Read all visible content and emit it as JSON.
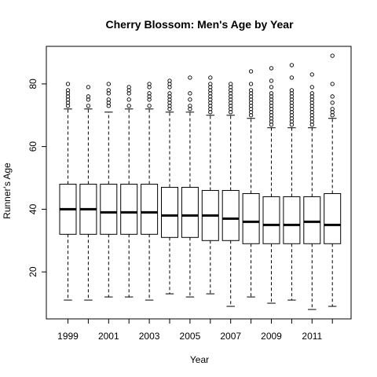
{
  "chart_data": {
    "type": "boxplot",
    "title": "Cherry Blossom: Men's Age by Year",
    "xlabel": "Year",
    "ylabel": "Runner's Age",
    "ylim": [
      5,
      92
    ],
    "yticks": [
      20,
      40,
      60,
      80
    ],
    "grid": false,
    "categories": [
      "1999",
      "2000",
      "2001",
      "2002",
      "2003",
      "2004",
      "2005",
      "2006",
      "2007",
      "2008",
      "2009",
      "2010",
      "2011",
      "2012"
    ],
    "xtick_labels": [
      "1999",
      "2001",
      "2003",
      "2005",
      "2007",
      "2009",
      "2011"
    ],
    "series": [
      {
        "category": "1999",
        "min": 11,
        "q1": 32,
        "median": 40,
        "q3": 48,
        "max": 72,
        "outliers": [
          73,
          74,
          75,
          76,
          77,
          78,
          80
        ]
      },
      {
        "category": "2000",
        "min": 11,
        "q1": 32,
        "median": 40,
        "q3": 48,
        "max": 72,
        "outliers": [
          73,
          75,
          76,
          79
        ]
      },
      {
        "category": "2001",
        "min": 12,
        "q1": 32,
        "median": 39,
        "q3": 48,
        "max": 71,
        "outliers": [
          73,
          74,
          75,
          77,
          78,
          80
        ]
      },
      {
        "category": "2002",
        "min": 12,
        "q1": 32,
        "median": 39,
        "q3": 48,
        "max": 72,
        "outliers": [
          73,
          75,
          77,
          78,
          79
        ]
      },
      {
        "category": "2003",
        "min": 11,
        "q1": 32,
        "median": 39,
        "q3": 48,
        "max": 72,
        "outliers": [
          73,
          75,
          76,
          77,
          79,
          80
        ]
      },
      {
        "category": "2004",
        "min": 13,
        "q1": 31,
        "median": 38,
        "q3": 47,
        "max": 71,
        "outliers": [
          72,
          73,
          74,
          75,
          76,
          77,
          79,
          80,
          81
        ]
      },
      {
        "category": "2005",
        "min": 12,
        "q1": 31,
        "median": 38,
        "q3": 47,
        "max": 71,
        "outliers": [
          72,
          73,
          75,
          77,
          82
        ]
      },
      {
        "category": "2006",
        "min": 13,
        "q1": 30,
        "median": 38,
        "q3": 46,
        "max": 70,
        "outliers": [
          71,
          72,
          73,
          74,
          75,
          76,
          77,
          78,
          79,
          80,
          82
        ]
      },
      {
        "category": "2007",
        "min": 9,
        "q1": 30,
        "median": 37,
        "q3": 46,
        "max": 70,
        "outliers": [
          71,
          72,
          73,
          74,
          75,
          76,
          77,
          78,
          79,
          80
        ]
      },
      {
        "category": "2008",
        "min": 12,
        "q1": 29,
        "median": 36,
        "q3": 45,
        "max": 69,
        "outliers": [
          70,
          71,
          72,
          73,
          74,
          75,
          76,
          77,
          78,
          80,
          84
        ]
      },
      {
        "category": "2009",
        "min": 10,
        "q1": 29,
        "median": 35,
        "q3": 44,
        "max": 66,
        "outliers": [
          67,
          68,
          69,
          70,
          71,
          72,
          73,
          74,
          75,
          76,
          77,
          79,
          81,
          85
        ]
      },
      {
        "category": "2010",
        "min": 11,
        "q1": 29,
        "median": 35,
        "q3": 44,
        "max": 66,
        "outliers": [
          67,
          68,
          69,
          70,
          71,
          72,
          73,
          74,
          75,
          76,
          77,
          78,
          82,
          86
        ]
      },
      {
        "category": "2011",
        "min": 8,
        "q1": 29,
        "median": 36,
        "q3": 44,
        "max": 66,
        "outliers": [
          67,
          68,
          69,
          70,
          71,
          72,
          73,
          74,
          75,
          76,
          77,
          79,
          83
        ]
      },
      {
        "category": "2012",
        "min": 9,
        "q1": 29,
        "median": 35,
        "q3": 45,
        "max": 69,
        "outliers": [
          70,
          71,
          72,
          74,
          76,
          80,
          89
        ]
      }
    ]
  }
}
